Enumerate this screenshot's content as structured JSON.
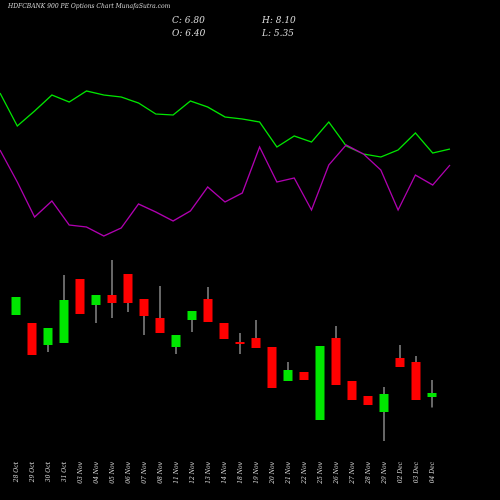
{
  "chart_data": {
    "type": "candlestick",
    "title": "HDFCBANK 900 PE Options Chart MunafaSutra.com",
    "info": [
      "C: 6.80",
      "H: 8.10",
      "O: 6.40",
      "L: 5.35"
    ],
    "categories": [
      "28 Oct",
      "29 Oct",
      "30 Oct",
      "31 Oct",
      "03 Nov",
      "04 Nov",
      "05 Nov",
      "06 Nov",
      "07 Nov",
      "08 Nov",
      "11 Nov",
      "12 Nov",
      "13 Nov",
      "14 Nov",
      "18 Nov",
      "19 Nov",
      "20 Nov",
      "21 Nov",
      "22 Nov",
      "25 Nov",
      "26 Nov",
      "27 Nov",
      "28 Nov",
      "29 Nov",
      "02 Dec",
      "03 Dec",
      "04 Dec"
    ],
    "open": [
      14.6,
      13.8,
      11.6,
      11.8,
      18.2,
      15.6,
      16.6,
      18.7,
      16.2,
      14.3,
      11.4,
      14.1,
      16.2,
      13.8,
      11.9,
      12.3,
      11.4,
      8.0,
      8.9,
      4.1,
      12.3,
      8.0,
      6.5,
      4.9,
      10.3,
      9.9,
      6.4
    ],
    "high": [
      16.4,
      13.8,
      13.3,
      18.6,
      18.2,
      16.6,
      20.1,
      18.7,
      16.2,
      17.5,
      12.6,
      15.0,
      17.4,
      13.8,
      12.8,
      14.1,
      11.4,
      9.9,
      8.9,
      11.5,
      13.5,
      8.0,
      6.5,
      7.4,
      11.6,
      10.5,
      8.1
    ],
    "low": [
      14.6,
      10.6,
      10.9,
      11.8,
      14.7,
      13.8,
      14.3,
      14.9,
      12.6,
      12.8,
      10.7,
      12.9,
      13.9,
      12.2,
      10.7,
      11.3,
      7.3,
      8.0,
      8.1,
      4.1,
      7.6,
      6.1,
      5.6,
      2.0,
      9.4,
      6.1,
      5.35
    ],
    "close": [
      16.4,
      10.6,
      13.3,
      16.1,
      14.7,
      16.6,
      15.8,
      15.8,
      14.5,
      12.8,
      12.6,
      15.0,
      13.9,
      12.2,
      11.8,
      11.3,
      7.3,
      9.1,
      8.1,
      11.5,
      7.6,
      6.1,
      5.6,
      6.7,
      9.4,
      6.1,
      6.8
    ],
    "ylim": [
      1,
      21
    ],
    "up_color": "#00e600",
    "down_color": "#ff0000",
    "lines": {
      "ylim": [
        0,
        200
      ],
      "series": [
        {
          "color": "#00e600",
          "values": [
            157,
            124,
            139,
            155,
            148,
            159,
            155,
            153,
            147,
            136,
            135,
            149,
            143,
            133,
            131,
            128,
            103,
            114,
            108,
            128,
            104,
            96,
            93,
            100,
            117,
            97,
            101
          ]
        },
        {
          "color": "#b000b0",
          "values": [
            100,
            68,
            33,
            49,
            25,
            23,
            14,
            22,
            46,
            38,
            29,
            39,
            63,
            48,
            57,
            103,
            68,
            72,
            40,
            85,
            105,
            96,
            80,
            40,
            75,
            65,
            85
          ]
        }
      ]
    }
  }
}
